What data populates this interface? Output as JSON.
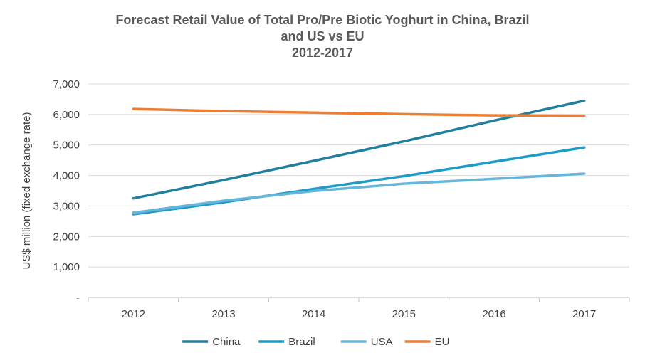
{
  "chart_data": {
    "type": "line",
    "title_lines": [
      "Forecast Retail Value of Total Pro/Pre Biotic Yoghurt in China, Brazil",
      "and US vs EU",
      "2012-2017"
    ],
    "ylabel": "US$ million (fixed exchange rate)",
    "xlabel": "",
    "categories": [
      "2012",
      "2013",
      "2014",
      "2015",
      "2016",
      "2017"
    ],
    "ylim": [
      0,
      7000
    ],
    "yticks": [
      0,
      1000,
      2000,
      3000,
      4000,
      5000,
      6000,
      7000
    ],
    "ytick_labels": [
      "-",
      "1,000",
      "2,000",
      "3,000",
      "4,000",
      "5,000",
      "6,000",
      "7,000"
    ],
    "grid": "horizontal",
    "legend_position": "bottom",
    "series": [
      {
        "name": "China",
        "color": "#1F7F9C",
        "values": [
          3250,
          3850,
          4480,
          5120,
          5800,
          6450
        ]
      },
      {
        "name": "Brazil",
        "color": "#1D9CC7",
        "values": [
          2730,
          3120,
          3560,
          3980,
          4450,
          4920
        ]
      },
      {
        "name": "USA",
        "color": "#66B6DC",
        "values": [
          2780,
          3170,
          3490,
          3730,
          3890,
          4060
        ]
      },
      {
        "name": "EU",
        "color": "#ED7D31",
        "values": [
          6180,
          6110,
          6060,
          6010,
          5970,
          5960
        ]
      }
    ]
  }
}
